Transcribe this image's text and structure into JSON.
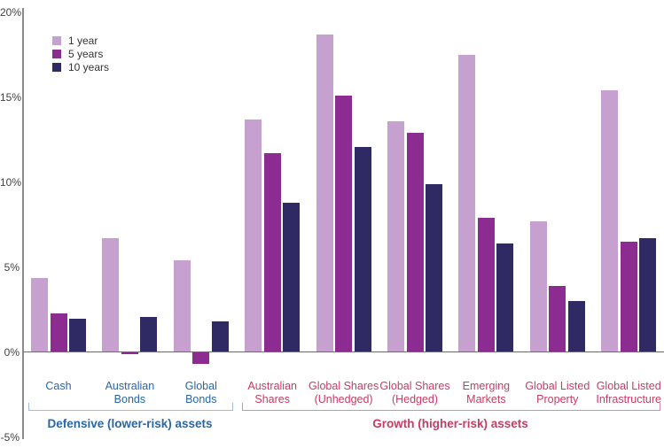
{
  "chart_data": {
    "type": "bar",
    "title": "",
    "xlabel": "",
    "ylabel": "",
    "ylim": [
      -5,
      20
    ],
    "grid": false,
    "legend_position": "top-left",
    "yticks": [
      {
        "label": "20%",
        "value": 20
      },
      {
        "label": "15%",
        "value": 15
      },
      {
        "label": "10%",
        "value": 10
      },
      {
        "label": "5%",
        "value": 5
      },
      {
        "label": "0%",
        "value": 0
      },
      {
        "label": "-5%",
        "value": -5
      }
    ],
    "series": [
      {
        "name": "1 year",
        "color": "#c6a0cf",
        "values": [
          4.4,
          6.7,
          5.4,
          13.7,
          18.7,
          13.6,
          17.5,
          7.7,
          15.4
        ]
      },
      {
        "name": "5 years",
        "color": "#8c2c90",
        "values": [
          2.3,
          -0.1,
          -0.7,
          11.7,
          15.1,
          12.9,
          7.9,
          3.9,
          6.5
        ]
      },
      {
        "name": "10 years",
        "color": "#2f2a63",
        "values": [
          2.0,
          2.1,
          1.8,
          8.8,
          12.1,
          9.9,
          6.4,
          3.0,
          6.7
        ]
      }
    ],
    "categories": [
      {
        "lines": [
          "Cash"
        ],
        "group": "defensive"
      },
      {
        "lines": [
          "Australian",
          "Bonds"
        ],
        "group": "defensive"
      },
      {
        "lines": [
          "Global",
          "Bonds"
        ],
        "group": "defensive"
      },
      {
        "lines": [
          "Australian",
          "Shares"
        ],
        "group": "growth"
      },
      {
        "lines": [
          "Global Shares",
          "(Unhedged)"
        ],
        "group": "growth"
      },
      {
        "lines": [
          "Global Shares",
          "(Hedged)"
        ],
        "group": "growth"
      },
      {
        "lines": [
          "Emerging",
          "Markets"
        ],
        "group": "growth"
      },
      {
        "lines": [
          "Global Listed",
          "Property"
        ],
        "group": "growth"
      },
      {
        "lines": [
          "Global Listed",
          "Infrastructure"
        ],
        "group": "growth"
      }
    ],
    "groups": {
      "defensive": {
        "label": "Defensive (lower-risk) assets",
        "text_color": "#2a66a4",
        "bracket_color": "#a3bcd9",
        "span": [
          0,
          2
        ]
      },
      "growth": {
        "label": "Growth (higher-risk) assets",
        "text_color": "#c63d62",
        "bracket_color": "#d98ca6",
        "span": [
          3,
          8
        ]
      }
    },
    "colors": {
      "axis_line": "#8a8a8a",
      "zero_line": "#6b6b6b",
      "tick_text": "#404040",
      "legend_text": "#333333"
    }
  }
}
